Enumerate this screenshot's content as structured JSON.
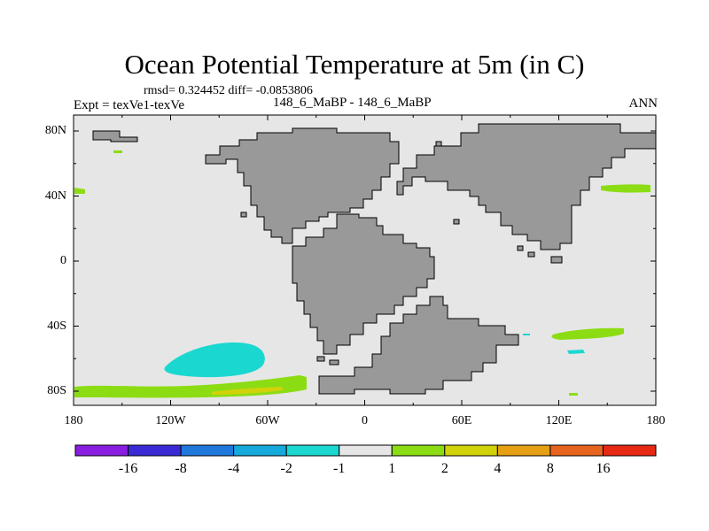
{
  "title": "Ocean Potential Temperature at 5m (in C)",
  "stats": "rmsd= 0.324452 diff= -0.0853806",
  "experiment": "Expt = texVe1-texVe",
  "center_label": "148_6_MaBP - 148_6_MaBP",
  "season": "ANN",
  "x_ticks": [
    "180",
    "120W",
    "60W",
    "0",
    "60E",
    "120E",
    "180"
  ],
  "y_ticks": [
    "80N",
    "40N",
    "0",
    "40S",
    "80S"
  ],
  "colorbar": {
    "labels": [
      "-16",
      "-8",
      "-4",
      "-2",
      "-1",
      "1",
      "2",
      "4",
      "8",
      "16"
    ],
    "colors": [
      "#8a1ee0",
      "#3a2ad6",
      "#1f78dc",
      "#16aadc",
      "#1ad8d0",
      "#e6e6e6",
      "#8cdc14",
      "#d2d20a",
      "#e6a014",
      "#e6641e",
      "#e62814"
    ]
  },
  "colors": {
    "ocean": "#e6e6e6",
    "land": "#999999",
    "coast": "#000000",
    "cool_anomaly": "#1ad8d0",
    "warm_anomaly": "#8cdc14",
    "strong_warm": "#d2d20a"
  }
}
